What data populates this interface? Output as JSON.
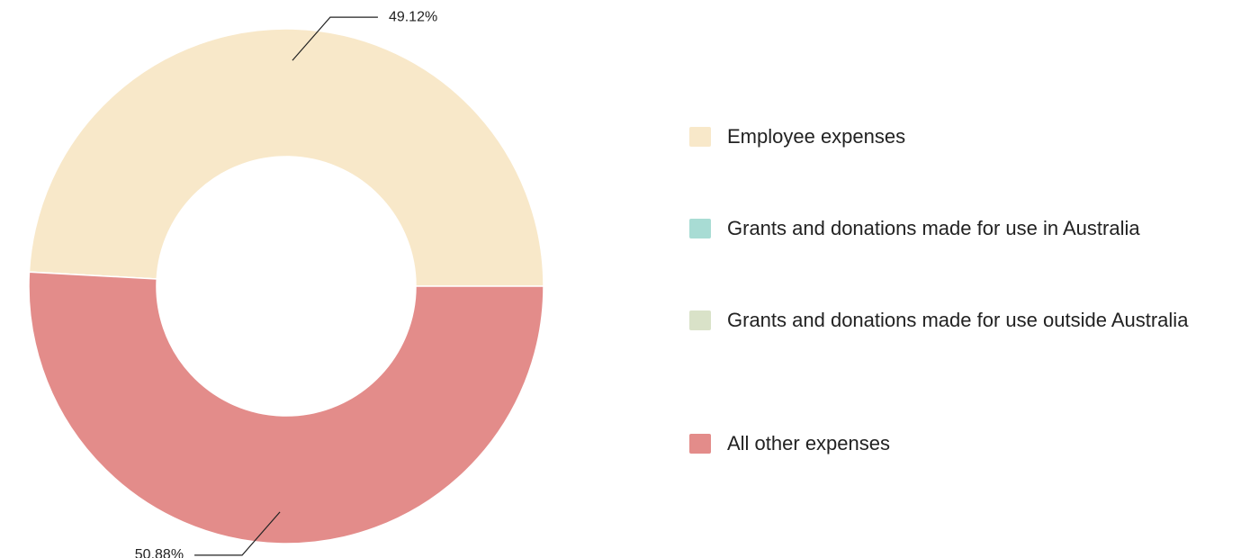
{
  "chart_data": {
    "type": "donut",
    "categories": [
      "Employee expenses",
      "Grants and donations made for use in Australia",
      "Grants and donations made for use outside Australia",
      "All other expenses"
    ],
    "values": [
      49.12,
      0,
      0,
      50.88
    ],
    "value_labels": [
      "49.12%",
      null,
      null,
      "50.88%"
    ],
    "colors": [
      "#f8e8c9",
      "#a8dcd4",
      "#d9e2c8",
      "#e38c8a"
    ],
    "legend": "right"
  }
}
